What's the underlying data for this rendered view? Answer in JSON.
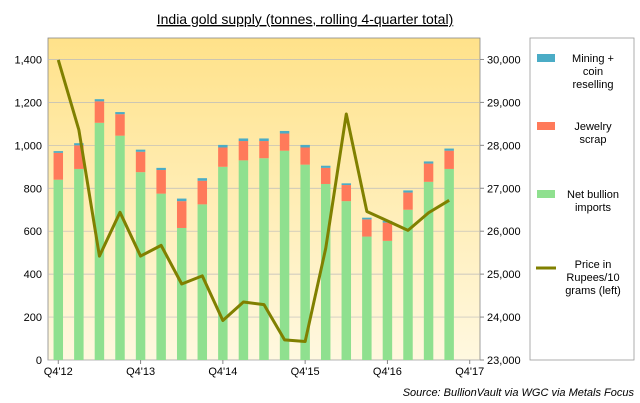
{
  "chart_data": {
    "type": "bar",
    "title": "India gold supply (tonnes, rolling 4-quarter total)",
    "source": "Source:  BullionVault via  WGC via  Metals Focus",
    "categories": [
      "Q4'12",
      "Q1'13",
      "Q2'13",
      "Q3'13",
      "Q4'13",
      "Q1'14",
      "Q2'14",
      "Q3'14",
      "Q4'14",
      "Q1'15",
      "Q2'15",
      "Q3'15",
      "Q4'15",
      "Q1'16",
      "Q2'16",
      "Q3'16",
      "Q4'16",
      "Q1'17",
      "Q2'17",
      "Q3'17",
      "Q4'17"
    ],
    "x_tick_labels": [
      "Q4'12",
      "Q4'13",
      "Q4'14",
      "Q4'15",
      "Q4'16",
      "Q4'17"
    ],
    "left_axis": {
      "min": 0,
      "max": 1500,
      "ticks": [
        "0",
        "200",
        "400",
        "600",
        "800",
        "1,000",
        "1,200",
        "1,400"
      ],
      "tick_values": [
        0,
        200,
        400,
        600,
        800,
        1000,
        1200,
        1400
      ]
    },
    "right_axis": {
      "min": 23000,
      "max": 30500,
      "ticks": [
        "23,000",
        "24,000",
        "25,000",
        "26,000",
        "27,000",
        "28,000",
        "29,000",
        "30,000"
      ],
      "tick_values": [
        23000,
        24000,
        25000,
        26000,
        27000,
        28000,
        29000,
        30000
      ]
    },
    "series": [
      {
        "name": "Net bullion imports",
        "color": "#8fe08f",
        "stack": true,
        "values": [
          840,
          890,
          1105,
          1045,
          875,
          775,
          615,
          725,
          900,
          930,
          940,
          975,
          910,
          820,
          740,
          575,
          555,
          700,
          830,
          890,
          null
        ]
      },
      {
        "name": "Jewelry scrap",
        "color": "#ff7a5a",
        "stack": true,
        "values": [
          125,
          110,
          100,
          100,
          95,
          110,
          125,
          110,
          90,
          90,
          80,
          80,
          80,
          75,
          75,
          80,
          85,
          80,
          85,
          85,
          null
        ]
      },
      {
        "name": "Mining + coin reselling",
        "color": "#4bacc6",
        "stack": true,
        "values": [
          8,
          10,
          10,
          10,
          10,
          10,
          12,
          12,
          12,
          12,
          12,
          12,
          12,
          10,
          8,
          8,
          8,
          10,
          10,
          10,
          null
        ]
      },
      {
        "name": "Price in Rupees/10 grams (left)",
        "color": "#808000",
        "type": "line",
        "axis": "right",
        "values": [
          29990,
          28360,
          25420,
          26440,
          25420,
          25670,
          24770,
          24960,
          23920,
          24350,
          24290,
          23470,
          23430,
          25600,
          28730,
          26460,
          26240,
          26020,
          26430,
          26720,
          null
        ]
      }
    ],
    "legend": [
      {
        "label": "Mining + coin reselling",
        "color": "#4bacc6",
        "kind": "box"
      },
      {
        "label": "Jewelry scrap",
        "color": "#ff7a5a",
        "kind": "box"
      },
      {
        "label": "Net bullion imports",
        "color": "#8fe08f",
        "kind": "box"
      },
      {
        "label": "Price in Rupees/10 grams (left)",
        "color": "#808000",
        "kind": "line"
      }
    ],
    "legend_lines": [
      [
        "Mining +",
        "coin",
        "reselling"
      ],
      [
        "Jewelry",
        "scrap"
      ],
      [
        "Net bullion",
        "imports"
      ],
      [
        "Price in",
        "Rupees/10",
        "grams (left)"
      ]
    ],
    "plot_background": [
      "#ffe28a",
      "#fff6d6"
    ],
    "legend_position": "right"
  }
}
